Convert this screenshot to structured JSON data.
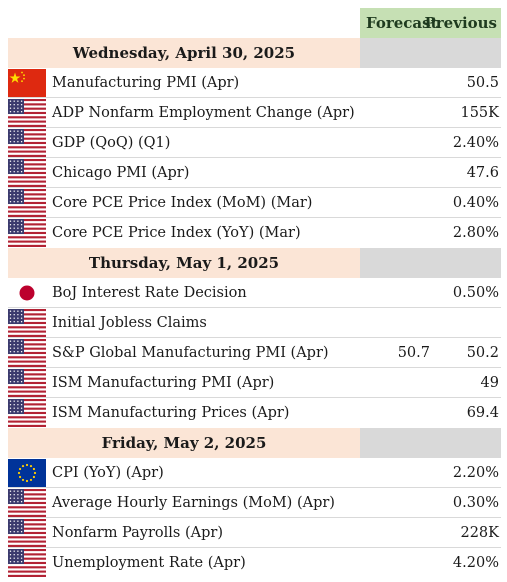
{
  "header": {
    "forecast": "Forecast",
    "previous": "Previous"
  },
  "sections": [
    {
      "date": "Wednesday, April 30, 2025",
      "rows": [
        {
          "flag": "china-flag-icon",
          "event": "Manufacturing PMI (Apr)",
          "forecast": "",
          "previous": "50.5"
        },
        {
          "flag": "us-flag-icon",
          "event": "ADP Nonfarm Employment Change (Apr)",
          "forecast": "",
          "previous": "155K"
        },
        {
          "flag": "us-flag-icon",
          "event": "GDP (QoQ) (Q1)",
          "forecast": "",
          "previous": "2.40%"
        },
        {
          "flag": "us-flag-icon",
          "event": "Chicago PMI (Apr)",
          "forecast": "",
          "previous": "47.6"
        },
        {
          "flag": "us-flag-icon",
          "event": "Core PCE Price Index (MoM) (Mar)",
          "forecast": "",
          "previous": "0.40%"
        },
        {
          "flag": "us-flag-icon",
          "event": "Core PCE Price Index (YoY) (Mar)",
          "forecast": "",
          "previous": "2.80%"
        }
      ]
    },
    {
      "date": "Thursday, May 1, 2025",
      "rows": [
        {
          "flag": "japan-flag-icon",
          "event": "BoJ Interest Rate Decision",
          "forecast": "",
          "previous": "0.50%"
        },
        {
          "flag": "us-flag-icon",
          "event": "Initial Jobless Claims",
          "forecast": "",
          "previous": ""
        },
        {
          "flag": "us-flag-icon",
          "event": "S&P Global Manufacturing PMI (Apr)",
          "forecast": "50.7",
          "previous": "50.2"
        },
        {
          "flag": "us-flag-icon",
          "event": "ISM Manufacturing PMI (Apr)",
          "forecast": "",
          "previous": "49"
        },
        {
          "flag": "us-flag-icon",
          "event": "ISM Manufacturing Prices (Apr)",
          "forecast": "",
          "previous": "69.4"
        }
      ]
    },
    {
      "date": "Friday, May 2, 2025",
      "rows": [
        {
          "flag": "eu-flag-icon",
          "event": "CPI (YoY) (Apr)",
          "forecast": "",
          "previous": "2.20%"
        },
        {
          "flag": "us-flag-icon",
          "event": "Average Hourly Earnings (MoM) (Apr)",
          "forecast": "",
          "previous": "0.30%"
        },
        {
          "flag": "us-flag-icon",
          "event": "Nonfarm Payrolls (Apr)",
          "forecast": "",
          "previous": "228K"
        },
        {
          "flag": "us-flag-icon",
          "event": "Unemployment Rate (Apr)",
          "forecast": "",
          "previous": "4.20%"
        }
      ]
    }
  ],
  "colors": {
    "header_green": "#c6e0b4",
    "date_band": "#fbe5d6",
    "side_band": "#d9d9d9",
    "us_red": "#b22234",
    "us_blue": "#3c3b6e",
    "china_red": "#de2910",
    "china_star": "#ffde00",
    "japan_red": "#bc002d",
    "eu_blue": "#003399",
    "eu_star": "#ffcc00"
  }
}
